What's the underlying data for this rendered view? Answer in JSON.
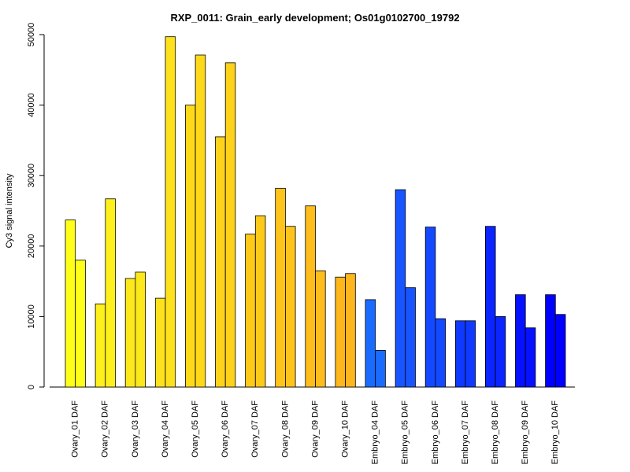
{
  "chart_data": {
    "type": "bar",
    "title": "RXP_0011: Grain_early development; Os01g0102700_19792",
    "xlabel": "",
    "ylabel": "Cy3 signal intensity",
    "ylim": [
      0,
      50000
    ],
    "yticks": [
      0,
      10000,
      20000,
      30000,
      40000,
      50000
    ],
    "grid": false,
    "legend": "none",
    "bars_per_category": 2,
    "categories": [
      "Ovary_01 DAF",
      "Ovary_02 DAF",
      "Ovary_03 DAF",
      "Ovary_04 DAF",
      "Ovary_05 DAF",
      "Ovary_06 DAF",
      "Ovary_07 DAF",
      "Ovary_08 DAF",
      "Ovary_09 DAF",
      "Ovary_10 DAF",
      "Embryo_04 DAF",
      "Embryo_05 DAF",
      "Embryo_06 DAF",
      "Embryo_07 DAF",
      "Embryo_08 DAF",
      "Embryo_09 DAF",
      "Embryo_10 DAF"
    ],
    "values": [
      [
        23700,
        18000
      ],
      [
        11800,
        26700
      ],
      [
        15400,
        16300
      ],
      [
        12600,
        49700
      ],
      [
        40000,
        47100
      ],
      [
        35500,
        46000
      ],
      [
        21700,
        24300
      ],
      [
        28200,
        22800
      ],
      [
        25700,
        16500
      ],
      [
        15600,
        16100
      ],
      [
        12400,
        5200
      ],
      [
        28000,
        14100
      ],
      [
        22700,
        9700
      ],
      [
        9400,
        9400
      ],
      [
        22800,
        10000
      ],
      [
        13100,
        8400
      ],
      [
        13100,
        10300
      ]
    ],
    "colors": [
      "#ffff1a",
      "#fef01c",
      "#fde81b",
      "#fde11c",
      "#fed91a",
      "#fed21b",
      "#fdca1a",
      "#ffc41b",
      "#febd1c",
      "#fdb61c",
      "#1a6cff",
      "#1955ff",
      "#1449ff",
      "#0f39ff",
      "#0a25ff",
      "#0612ff",
      "#0000ff"
    ]
  }
}
